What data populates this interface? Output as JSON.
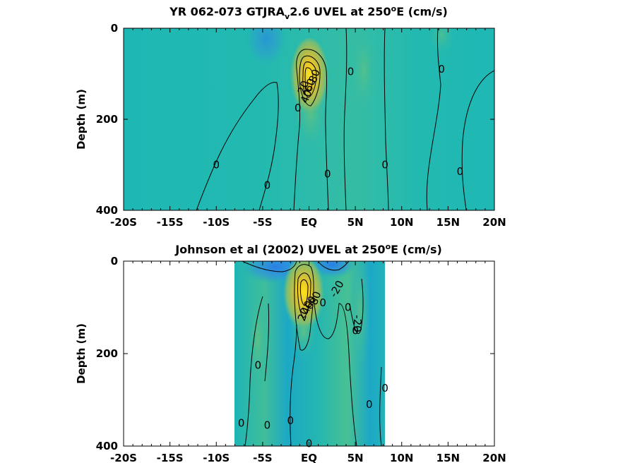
{
  "chart_data": [
    {
      "type": "heatmap",
      "title_parts": [
        "YR 062-073 GTJRA",
        "v",
        "2.6 UVEL at 250",
        "o",
        "E (cm/s)"
      ],
      "ylabel": "Depth (m)",
      "xticks": [
        "-20S",
        "-15S",
        "-10S",
        "-5S",
        "EQ",
        "5N",
        "10N",
        "15N",
        "20N"
      ],
      "yticks": [
        "0",
        "200",
        "400"
      ],
      "xlim": [
        -20,
        20
      ],
      "ylim": [
        0,
        400
      ],
      "data_extent": [
        -20,
        20
      ],
      "features": [
        {
          "kind": "core",
          "lat": 0,
          "depth": 110,
          "value": 80
        },
        {
          "kind": "weak-negative",
          "lat": -4,
          "depth": 40,
          "value": -20
        }
      ],
      "contour_labels": [
        {
          "text": "0",
          "lat": -10,
          "depth": 300
        },
        {
          "text": "0",
          "lat": -4.5,
          "depth": 345
        },
        {
          "text": "0",
          "lat": -1.2,
          "depth": 175
        },
        {
          "text": "0",
          "lat": 2,
          "depth": 320
        },
        {
          "text": "0",
          "lat": 4.5,
          "depth": 95
        },
        {
          "text": "0",
          "lat": 8.2,
          "depth": 300
        },
        {
          "text": "0",
          "lat": 14.3,
          "depth": 90
        },
        {
          "text": "0",
          "lat": 16.3,
          "depth": 315
        },
        {
          "text": "20",
          "lat": -0.6,
          "depth": 130,
          "rotate": -70
        },
        {
          "text": "40",
          "lat": -0.3,
          "depth": 150,
          "rotate": -70
        },
        {
          "text": "60",
          "lat": 0.1,
          "depth": 125,
          "rotate": -70
        },
        {
          "text": "80",
          "lat": 0.6,
          "depth": 105,
          "rotate": -70
        }
      ]
    },
    {
      "type": "heatmap",
      "title_parts": [
        "Johnson et al (2002) UVEL at 250",
        "o",
        "E (cm/s)"
      ],
      "ylabel": "Depth (m)",
      "xticks": [
        "-20S",
        "-15S",
        "-10S",
        "-5S",
        "EQ",
        "5N",
        "10N",
        "15N",
        "20N"
      ],
      "yticks": [
        "0",
        "200",
        "400"
      ],
      "xlim": [
        -20,
        20
      ],
      "ylim": [
        0,
        400
      ],
      "data_extent": [
        -8,
        8.5
      ],
      "features": [
        {
          "kind": "core",
          "lat": 0,
          "depth": 70,
          "value": 80
        },
        {
          "kind": "weak-negative",
          "lat": -5,
          "depth": 30,
          "value": -20
        },
        {
          "kind": "weak-negative",
          "lat": 2.5,
          "depth": 25,
          "value": -20
        }
      ],
      "contour_labels": [
        {
          "text": "0",
          "lat": -5.5,
          "depth": 225
        },
        {
          "text": "0",
          "lat": -7.3,
          "depth": 350
        },
        {
          "text": "0",
          "lat": -4.5,
          "depth": 355
        },
        {
          "text": "0",
          "lat": -2,
          "depth": 345
        },
        {
          "text": "0",
          "lat": 0,
          "depth": 395
        },
        {
          "text": "0",
          "lat": 1.5,
          "depth": 90
        },
        {
          "text": "0",
          "lat": 4.2,
          "depth": 100
        },
        {
          "text": "0",
          "lat": 5,
          "depth": 150
        },
        {
          "text": "0",
          "lat": 6.5,
          "depth": 310
        },
        {
          "text": "0",
          "lat": 8.2,
          "depth": 275
        },
        {
          "text": "-20",
          "lat": 3,
          "depth": 60,
          "rotate": -60
        },
        {
          "text": "-20",
          "lat": 5.2,
          "depth": 135,
          "rotate": 90
        },
        {
          "text": "20",
          "lat": -0.6,
          "depth": 115,
          "rotate": -70
        },
        {
          "text": "40",
          "lat": -0.2,
          "depth": 100,
          "rotate": -70
        },
        {
          "text": "60",
          "lat": 0.2,
          "depth": 90,
          "rotate": -70
        },
        {
          "text": "80",
          "lat": 0.7,
          "depth": 80,
          "rotate": -70
        }
      ]
    }
  ]
}
